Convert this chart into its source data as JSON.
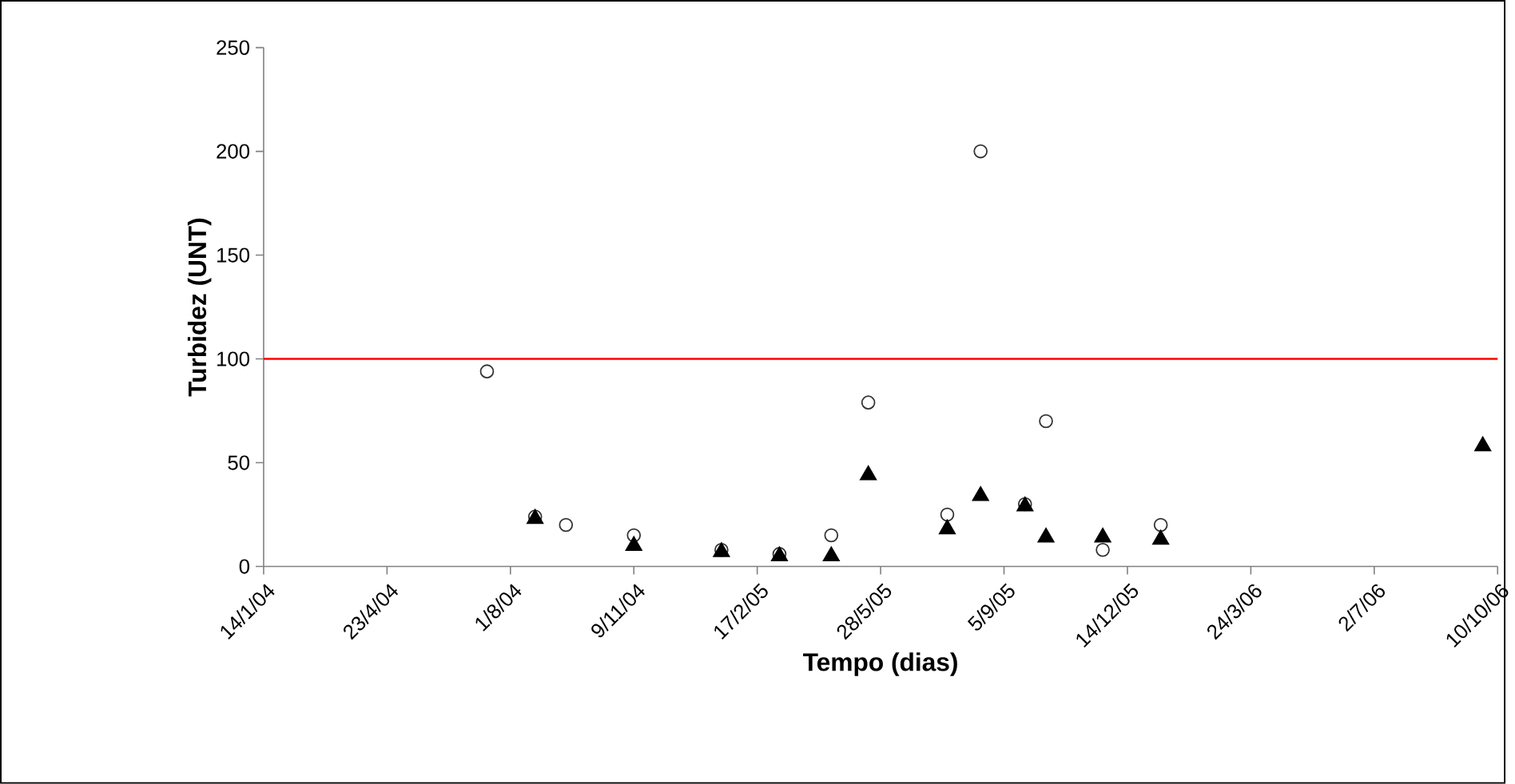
{
  "chart_data": {
    "type": "scatter",
    "xlabel": "Tempo (dias)",
    "ylabel": "Turbidez (UNT)",
    "xlim": [
      "2004-01-14",
      "2006-10-10"
    ],
    "xticks": [
      {
        "value": "2004-01-14",
        "label": "14/1/04"
      },
      {
        "value": "2004-04-23",
        "label": "23/4/04"
      },
      {
        "value": "2004-08-01",
        "label": "1/8/04"
      },
      {
        "value": "2004-11-09",
        "label": "9/11/04"
      },
      {
        "value": "2005-02-17",
        "label": "17/2/05"
      },
      {
        "value": "2005-05-28",
        "label": "28/5/05"
      },
      {
        "value": "2005-09-05",
        "label": "5/9/05"
      },
      {
        "value": "2005-12-14",
        "label": "14/12/05"
      },
      {
        "value": "2006-03-24",
        "label": "24/3/06"
      },
      {
        "value": "2006-07-02",
        "label": "2/7/06"
      },
      {
        "value": "2006-10-10",
        "label": "10/10/06"
      }
    ],
    "ylim": [
      0,
      250
    ],
    "yticks": [
      0,
      50,
      100,
      150,
      200,
      250
    ],
    "grid": false,
    "ref_lines": [
      {
        "axis": "y",
        "value": 100,
        "color": "#ff0000"
      }
    ],
    "series": [
      {
        "color": "#333333",
        "marker": "circle",
        "x": [
          "2004-07-13",
          "2004-08-21",
          "2004-09-15",
          "2004-11-09",
          "2005-01-19",
          "2005-03-07",
          "2005-04-18",
          "2005-05-18",
          "2005-07-21",
          "2005-08-17",
          "2005-09-22",
          "2005-10-09",
          "2005-11-24",
          "2006-01-10"
        ],
        "values": [
          94,
          24,
          20,
          15,
          8,
          6,
          15,
          79,
          25,
          200,
          30,
          70,
          8,
          20
        ]
      },
      {
        "color": "#000000",
        "marker": "triangle",
        "x": [
          "2004-08-21",
          "2004-11-09",
          "2005-01-19",
          "2005-03-07",
          "2005-04-18",
          "2005-05-18",
          "2005-07-21",
          "2005-08-17",
          "2005-09-22",
          "2005-10-09",
          "2005-11-24",
          "2006-01-10",
          "2006-09-28"
        ],
        "values": [
          23,
          10,
          7,
          5,
          5,
          44,
          18,
          34,
          29,
          14,
          14,
          13,
          58
        ]
      }
    ]
  }
}
